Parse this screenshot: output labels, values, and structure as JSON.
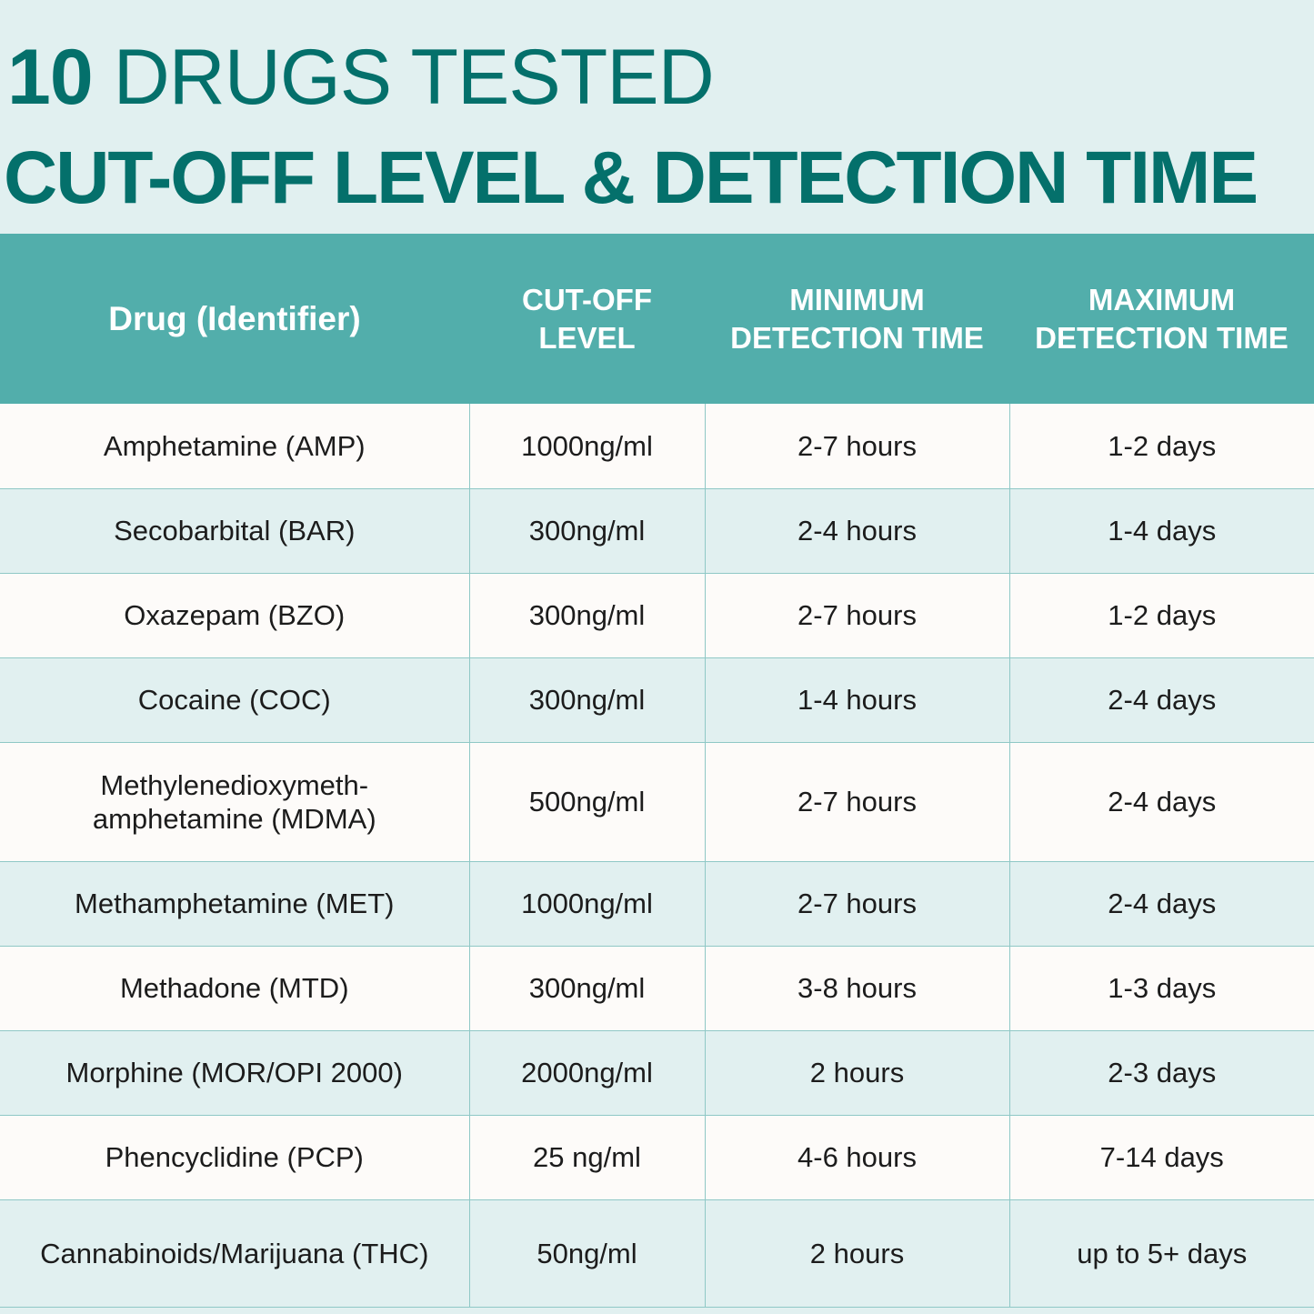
{
  "title": {
    "number": "10",
    "text": " DRUGS TESTED",
    "subtitle": "CUT-OFF LEVEL & DETECTION TIME"
  },
  "table": {
    "headers": {
      "drug": "Drug (Identifier)",
      "cutoff_1": "CUT-OFF",
      "cutoff_2": "LEVEL",
      "min_1": "MINIMUM",
      "min_2": "DETECTION TIME",
      "max_1": "MAXIMUM",
      "max_2": "DETECTION TIME"
    },
    "rows": [
      {
        "drug": "Amphetamine (AMP)",
        "cutoff": "1000ng/ml",
        "min": "2-7 hours",
        "max": "1-2 days"
      },
      {
        "drug": "Secobarbital (BAR)",
        "cutoff": "300ng/ml",
        "min": "2-4 hours",
        "max": "1-4 days"
      },
      {
        "drug": "Oxazepam (BZO)",
        "cutoff": "300ng/ml",
        "min": "2-7 hours",
        "max": "1-2 days"
      },
      {
        "drug": "Cocaine (COC)",
        "cutoff": "300ng/ml",
        "min": "1-4 hours",
        "max": "2-4 days"
      },
      {
        "drug_line1": "Methylenedioxymeth-",
        "drug_line2": "amphetamine (MDMA)",
        "cutoff": "500ng/ml",
        "min": "2-7 hours",
        "max": "2-4 days"
      },
      {
        "drug": "Methamphetamine (MET)",
        "cutoff": "1000ng/ml",
        "min": "2-7 hours",
        "max": "2-4 days"
      },
      {
        "drug": "Methadone (MTD)",
        "cutoff": "300ng/ml",
        "min": "3-8 hours",
        "max": "1-3 days"
      },
      {
        "drug": "Morphine (MOR/OPI 2000)",
        "cutoff": "2000ng/ml",
        "min": "2 hours",
        "max": "2-3 days"
      },
      {
        "drug": "Phencyclidine (PCP)",
        "cutoff": "25 ng/ml",
        "min": "4-6 hours",
        "max": "7-14 days"
      },
      {
        "drug": "Cannabinoids/Marijuana (THC)",
        "cutoff": "50ng/ml",
        "min": "2 hours",
        "max": "up to 5+ days"
      }
    ]
  }
}
